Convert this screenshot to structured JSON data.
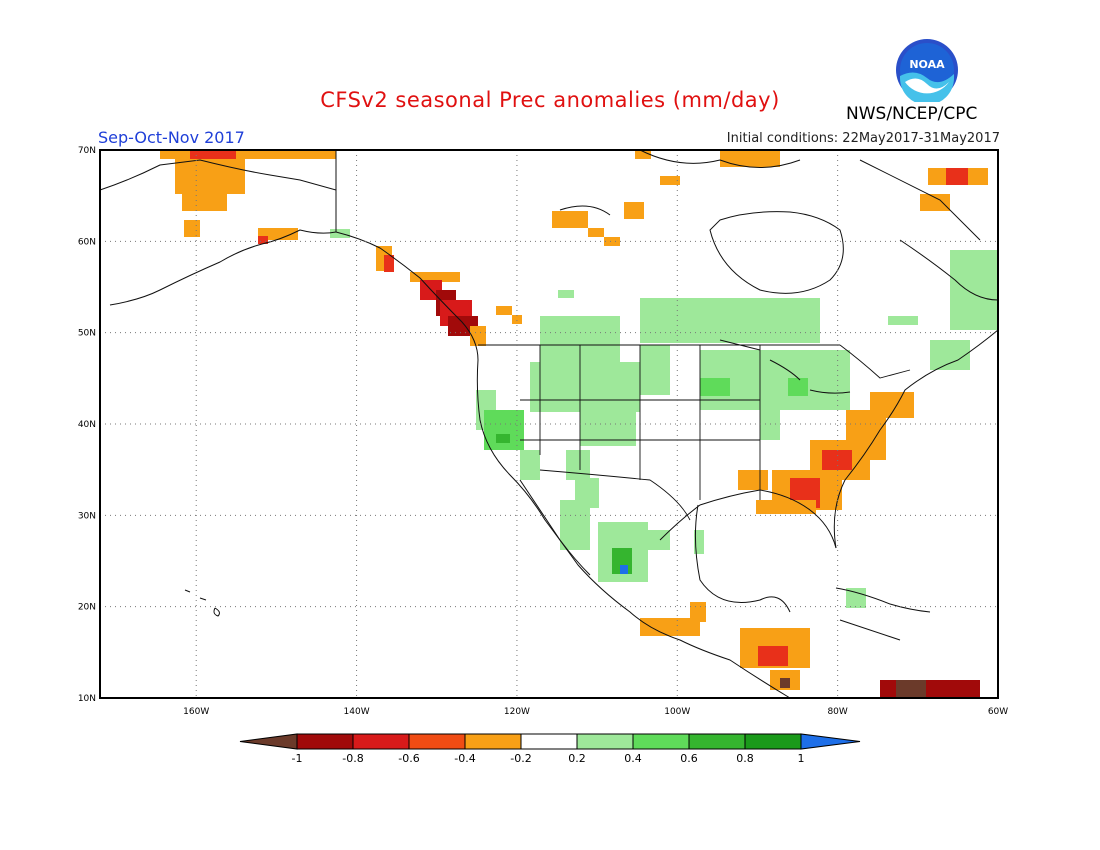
{
  "header": {
    "title": "CFSv2 seasonal Prec anomalies (mm/day)",
    "period": "Sep-Oct-Nov 2017",
    "initial_conditions": "Initial conditions: 22May2017-31May2017",
    "agency": "NWS/NCEP/CPC",
    "logo_text": "NOAA",
    "logo_icon": "noaa-logo"
  },
  "map": {
    "lon_range": [
      -172,
      -60
    ],
    "lat_range": [
      10,
      70
    ],
    "lat_labels": [
      "70N",
      "60N",
      "50N",
      "40N",
      "30N",
      "20N",
      "10N"
    ],
    "lon_labels": [
      "160W",
      "140W",
      "120W",
      "100W",
      "80W",
      "60W"
    ],
    "gridlines": "dotted"
  },
  "colorbar": {
    "tick_labels": [
      "-1",
      "-0.8",
      "-0.6",
      "-0.4",
      "-0.2",
      "0.2",
      "0.4",
      "0.6",
      "0.8",
      "1"
    ],
    "low_color": "#6b3a2a",
    "high_color": "#1e6fe8",
    "colors": [
      "#a10a0a",
      "#d81a1a",
      "#f04c14",
      "#f8a016",
      "#ffffff",
      "#9ee89a",
      "#5fdb5a",
      "#35b52f",
      "#1a9a1a"
    ]
  }
}
